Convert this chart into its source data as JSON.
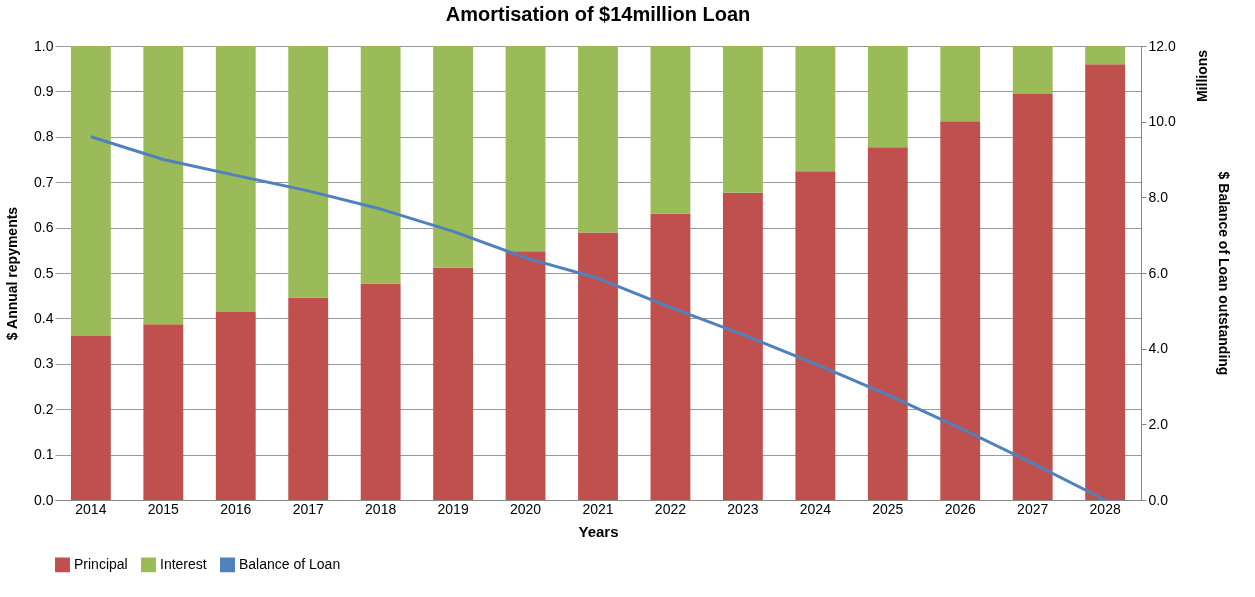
{
  "chart_data": {
    "type": "bar",
    "title": "Amortisation  of $14million Loan",
    "xlabel": "Years",
    "ylabel": "$ Annual repyments",
    "y2label": "$  Balance of Loan outstanding",
    "annotations": [
      "Millions"
    ],
    "categories": [
      "2014",
      "2015",
      "2016",
      "2017",
      "2018",
      "2019",
      "2020",
      "2021",
      "2022",
      "2023",
      "2024",
      "2025",
      "2026",
      "2027",
      "2028"
    ],
    "stacked": true,
    "grid": "y",
    "legend": "bottom",
    "series": [
      {
        "name": "Principal",
        "color": "#c0504d",
        "values": [
          0.361,
          0.387,
          0.414,
          0.446,
          0.477,
          0.512,
          0.548,
          0.589,
          0.631,
          0.677,
          0.724,
          0.777,
          0.834,
          0.894,
          0.96
        ]
      },
      {
        "name": "Interest",
        "color": "#9bbb59",
        "values": [
          0.639,
          0.613,
          0.586,
          0.554,
          0.523,
          0.488,
          0.452,
          0.411,
          0.369,
          0.323,
          0.276,
          0.223,
          0.166,
          0.106,
          0.04
        ]
      },
      {
        "name": "Balance of Loan",
        "type": "line",
        "axis": "y2",
        "color": "#4f81bd",
        "values": [
          9.6,
          9.0,
          8.58,
          8.17,
          7.69,
          7.1,
          6.4,
          5.86,
          5.09,
          4.37,
          3.6,
          2.78,
          1.9,
          0.97,
          0.0
        ]
      }
    ],
    "ylim": [
      0,
      1
    ],
    "yticks": [
      {
        "value": 0,
        "label": "0.0"
      },
      {
        "value": 0.1,
        "label": "0.1"
      },
      {
        "value": 0.2,
        "label": "0.2"
      },
      {
        "value": 0.3,
        "label": "0.3"
      },
      {
        "value": 0.4,
        "label": "0.4"
      },
      {
        "value": 0.5,
        "label": "0.5"
      },
      {
        "value": 0.6,
        "label": "0.6"
      },
      {
        "value": 0.7,
        "label": "0.7"
      },
      {
        "value": 0.8,
        "label": "0.8"
      },
      {
        "value": 0.9,
        "label": "0.9"
      },
      {
        "value": 1,
        "label": "1.0"
      }
    ],
    "y2lim": [
      0,
      12
    ],
    "y2ticks": [
      {
        "value": 0,
        "label": "0.0"
      },
      {
        "value": 2,
        "label": "2.0"
      },
      {
        "value": 4,
        "label": "4.0"
      },
      {
        "value": 6,
        "label": "6.0"
      },
      {
        "value": 8,
        "label": "8.0"
      },
      {
        "value": 10,
        "label": "10.0"
      },
      {
        "value": 12,
        "label": "12.0"
      }
    ]
  }
}
